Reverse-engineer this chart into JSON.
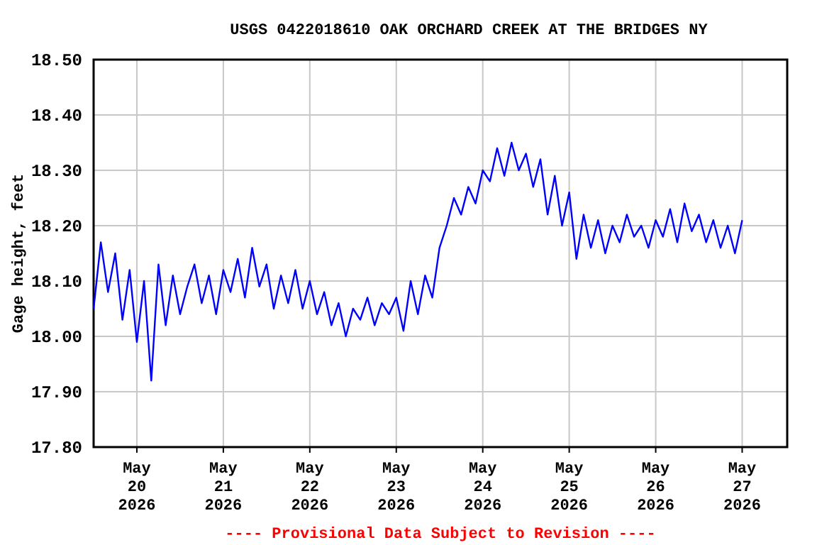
{
  "chart_data": {
    "type": "line",
    "title": "USGS 0422018610 OAK ORCHARD CREEK AT THE BRIDGES NY",
    "ylabel": "Gage height, feet",
    "x": [
      "2026-05-19T12:00",
      "2026-05-19T14:00",
      "2026-05-19T16:00",
      "2026-05-19T18:00",
      "2026-05-19T20:00",
      "2026-05-19T22:00",
      "2026-05-20T00:00",
      "2026-05-20T02:00",
      "2026-05-20T04:00",
      "2026-05-20T06:00",
      "2026-05-20T08:00",
      "2026-05-20T10:00",
      "2026-05-20T12:00",
      "2026-05-20T14:00",
      "2026-05-20T16:00",
      "2026-05-20T18:00",
      "2026-05-20T20:00",
      "2026-05-20T22:00",
      "2026-05-21T00:00",
      "2026-05-21T02:00",
      "2026-05-21T04:00",
      "2026-05-21T06:00",
      "2026-05-21T08:00",
      "2026-05-21T10:00",
      "2026-05-21T12:00",
      "2026-05-21T14:00",
      "2026-05-21T16:00",
      "2026-05-21T18:00",
      "2026-05-21T20:00",
      "2026-05-21T22:00",
      "2026-05-22T00:00",
      "2026-05-22T02:00",
      "2026-05-22T04:00",
      "2026-05-22T06:00",
      "2026-05-22T08:00",
      "2026-05-22T10:00",
      "2026-05-22T12:00",
      "2026-05-22T14:00",
      "2026-05-22T16:00",
      "2026-05-22T18:00",
      "2026-05-22T20:00",
      "2026-05-22T22:00",
      "2026-05-23T00:00",
      "2026-05-23T02:00",
      "2026-05-23T04:00",
      "2026-05-23T06:00",
      "2026-05-23T08:00",
      "2026-05-23T10:00",
      "2026-05-23T12:00",
      "2026-05-23T14:00",
      "2026-05-23T16:00",
      "2026-05-23T18:00",
      "2026-05-23T20:00",
      "2026-05-23T22:00",
      "2026-05-24T00:00",
      "2026-05-24T02:00",
      "2026-05-24T04:00",
      "2026-05-24T06:00",
      "2026-05-24T08:00",
      "2026-05-24T10:00",
      "2026-05-24T12:00",
      "2026-05-24T14:00",
      "2026-05-24T16:00",
      "2026-05-24T18:00",
      "2026-05-24T20:00",
      "2026-05-24T22:00",
      "2026-05-25T00:00",
      "2026-05-25T02:00",
      "2026-05-25T04:00",
      "2026-05-25T06:00",
      "2026-05-25T08:00",
      "2026-05-25T10:00",
      "2026-05-25T12:00",
      "2026-05-25T14:00",
      "2026-05-25T16:00",
      "2026-05-25T18:00",
      "2026-05-25T20:00",
      "2026-05-25T22:00",
      "2026-05-26T00:00",
      "2026-05-26T02:00",
      "2026-05-26T04:00",
      "2026-05-26T06:00",
      "2026-05-26T08:00",
      "2026-05-26T10:00",
      "2026-05-26T12:00",
      "2026-05-26T14:00",
      "2026-05-26T16:00",
      "2026-05-26T18:00",
      "2026-05-26T20:00",
      "2026-05-26T22:00",
      "2026-05-27T00:00"
    ],
    "series": [
      {
        "color": "#0000ff",
        "values": [
          18.05,
          18.17,
          18.08,
          18.15,
          18.03,
          18.12,
          17.99,
          18.1,
          17.92,
          18.13,
          18.02,
          18.11,
          18.04,
          18.09,
          18.13,
          18.06,
          18.11,
          18.04,
          18.12,
          18.08,
          18.14,
          18.07,
          18.16,
          18.09,
          18.13,
          18.05,
          18.11,
          18.06,
          18.12,
          18.05,
          18.1,
          18.04,
          18.08,
          18.02,
          18.06,
          18.0,
          18.05,
          18.03,
          18.07,
          18.02,
          18.06,
          18.04,
          18.07,
          18.01,
          18.1,
          18.04,
          18.11,
          18.07,
          18.16,
          18.2,
          18.25,
          18.22,
          18.27,
          18.24,
          18.3,
          18.28,
          18.34,
          18.29,
          18.35,
          18.3,
          18.33,
          18.27,
          18.32,
          18.22,
          18.29,
          18.2,
          18.26,
          18.14,
          18.22,
          18.16,
          18.21,
          18.15,
          18.2,
          18.17,
          18.22,
          18.18,
          18.2,
          18.16,
          18.21,
          18.18,
          18.23,
          18.17,
          18.24,
          18.19,
          18.22,
          18.17,
          18.21,
          18.16,
          18.2,
          18.15,
          18.21
        ]
      }
    ],
    "xlim": [
      "2026-05-19T12:00",
      "2026-05-27T12:30"
    ],
    "xticks": [
      {
        "value": "2026-05-20",
        "label": "May\n20\n2026"
      },
      {
        "value": "2026-05-21",
        "label": "May\n21\n2026"
      },
      {
        "value": "2026-05-22",
        "label": "May\n22\n2026"
      },
      {
        "value": "2026-05-23",
        "label": "May\n23\n2026"
      },
      {
        "value": "2026-05-24",
        "label": "May\n24\n2026"
      },
      {
        "value": "2026-05-25",
        "label": "May\n25\n2026"
      },
      {
        "value": "2026-05-26",
        "label": "May\n26\n2026"
      },
      {
        "value": "2026-05-27",
        "label": "May\n27\n2026"
      }
    ],
    "ylim": [
      17.8,
      18.5
    ],
    "yticks": [
      {
        "value": 17.8,
        "label": "17.80"
      },
      {
        "value": 17.9,
        "label": "17.90"
      },
      {
        "value": 18.0,
        "label": "18.00"
      },
      {
        "value": 18.1,
        "label": "18.10"
      },
      {
        "value": 18.2,
        "label": "18.20"
      },
      {
        "value": 18.3,
        "label": "18.30"
      },
      {
        "value": 18.4,
        "label": "18.40"
      },
      {
        "value": 18.5,
        "label": "18.50"
      }
    ],
    "grid": true,
    "annotations": [
      "---- Provisional Data Subject to Revision ----"
    ]
  }
}
